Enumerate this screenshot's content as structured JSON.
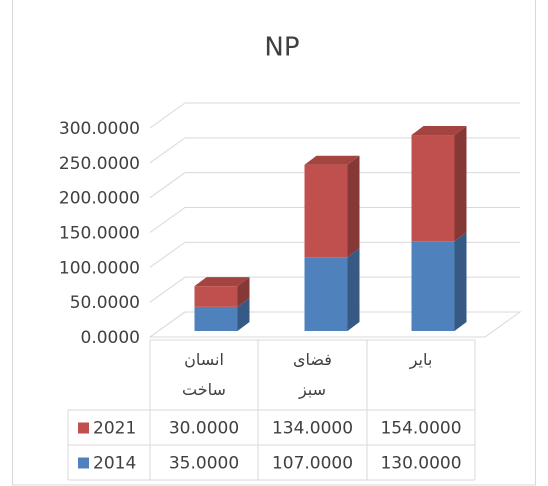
{
  "chart_data": {
    "type": "bar3d_stacked",
    "title": "NP",
    "categories": [
      "انسان ساخت",
      "فضای سبز",
      "بایر"
    ],
    "series": [
      {
        "name": "2014",
        "color": "#4f81bd",
        "values": [
          35,
          107,
          130
        ],
        "value_labels": [
          "35.0000",
          "107.0000",
          "130.0000"
        ]
      },
      {
        "name": "2021",
        "color": "#c0504d",
        "values": [
          30,
          134,
          154
        ],
        "value_labels": [
          "30.0000",
          "134.0000",
          "154.0000"
        ]
      }
    ],
    "ylim": [
      0,
      300
    ],
    "yticks": [
      {
        "value": 0,
        "label": "0.0000"
      },
      {
        "value": 50,
        "label": "50.0000"
      },
      {
        "value": 100,
        "label": "100.0000"
      },
      {
        "value": 150,
        "label": "150.0000"
      },
      {
        "value": 200,
        "label": "200.0000"
      },
      {
        "value": 250,
        "label": "250.0000"
      },
      {
        "value": 300,
        "label": "300.0000"
      }
    ],
    "grid": true
  }
}
